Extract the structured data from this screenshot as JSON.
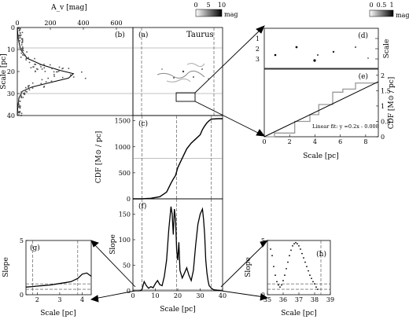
{
  "chart_data": [
    {
      "id": "b",
      "type": "line",
      "panel_label": "(b)",
      "xlabel": "A_v [mag]",
      "ylabel": "Scale [pc]",
      "xlim": [
        0,
        700
      ],
      "ylim": [
        0,
        40
      ],
      "yaxis_inverted": true,
      "xticks": [
        "0",
        "200",
        "400",
        "600"
      ],
      "yticks": [
        "0",
        "10",
        "20",
        "30",
        "40"
      ],
      "x": [
        0,
        5,
        20,
        60,
        150,
        260,
        340,
        310,
        200,
        90,
        30,
        10,
        3,
        0
      ],
      "y": [
        0,
        5,
        10,
        14,
        17,
        19.5,
        21,
        23,
        25,
        27,
        29,
        32,
        36,
        40
      ],
      "hlines": [
        9,
        30
      ]
    },
    {
      "id": "a",
      "type": "heatmap",
      "panel_label": "(a)",
      "annotation": "Taurus",
      "colorbar_ticks": [
        "0",
        "5",
        "10"
      ],
      "colorbar_label": "mag"
    },
    {
      "id": "c",
      "type": "line",
      "panel_label": "(c)",
      "ylabel": "CDF [M⊙ / pc]",
      "yticks": [
        "0",
        "500",
        "1000",
        "1500"
      ],
      "ylim": [
        0,
        1600
      ],
      "xlim": [
        0,
        40
      ],
      "x": [
        0,
        4,
        8,
        12,
        15,
        17,
        18,
        19,
        20,
        22,
        24,
        26,
        28,
        30,
        31,
        32,
        33,
        34,
        35,
        38,
        40
      ],
      "y": [
        0,
        0,
        10,
        40,
        130,
        300,
        380,
        450,
        600,
        780,
        960,
        1070,
        1150,
        1230,
        1330,
        1400,
        1460,
        1500,
        1530,
        1540,
        1540
      ],
      "hline": 780,
      "vlines": [
        4,
        19.5,
        35
      ]
    },
    {
      "id": "f",
      "type": "line",
      "panel_label": "(f)",
      "xlabel": "Scale [pc]",
      "ylabel": "Slope",
      "xlim": [
        0,
        40
      ],
      "ylim": [
        0,
        180
      ],
      "xticks": [
        "0",
        "10",
        "20",
        "30",
        "40"
      ],
      "yticks": [
        "0",
        "50",
        "100",
        "150"
      ],
      "x": [
        0,
        3,
        4,
        5,
        6,
        7,
        8,
        9,
        10,
        11,
        12,
        13,
        14,
        15,
        16,
        17,
        17.5,
        18,
        18.5,
        19,
        19.5,
        20,
        20.5,
        21,
        22,
        23,
        24,
        25,
        26,
        27,
        28,
        29,
        30,
        31,
        31.5,
        32,
        32.5,
        33,
        33.5,
        34,
        35,
        36,
        38,
        40
      ],
      "y": [
        0,
        0,
        2,
        18,
        10,
        5,
        8,
        6,
        14,
        20,
        12,
        10,
        28,
        60,
        120,
        165,
        150,
        110,
        160,
        140,
        80,
        60,
        95,
        40,
        25,
        35,
        45,
        30,
        20,
        40,
        90,
        130,
        150,
        160,
        140,
        110,
        60,
        35,
        20,
        10,
        5,
        2,
        1,
        0
      ],
      "vlines": [
        4,
        19.5,
        35
      ]
    },
    {
      "id": "d",
      "type": "heatmap",
      "panel_label": "(d)",
      "ylabel": "Scale",
      "yticks": [
        "1",
        "2",
        "3"
      ],
      "colorbar_ticks": [
        "0",
        "0.5",
        "1"
      ],
      "colorbar_label": "mag"
    },
    {
      "id": "e",
      "type": "line",
      "panel_label": "(e)",
      "xlabel": "Scale [pc]",
      "ylabel": "CDF [M⊙ / pc]",
      "xlim": [
        0,
        9
      ],
      "ylim": [
        0,
        2.2
      ],
      "xticks": [
        "0",
        "2",
        "4",
        "6",
        "8"
      ],
      "yticks": [
        "0",
        "0.5",
        "1",
        "1.5",
        "2"
      ],
      "annotation": "Linear fit: y =0.2x - 0.008",
      "fit": {
        "slope": 0.2,
        "intercept": -0.008
      },
      "x": [
        0,
        0.8,
        0.8,
        2.4,
        2.4,
        3.6,
        3.6,
        4.3,
        4.3,
        5.4,
        5.4,
        6.2,
        6.2,
        7.2,
        7.2,
        9
      ],
      "y": [
        0,
        0,
        0.12,
        0.12,
        0.5,
        0.5,
        0.72,
        0.72,
        1.05,
        1.05,
        1.45,
        1.45,
        1.55,
        1.55,
        1.75,
        1.75
      ]
    },
    {
      "id": "g",
      "type": "line",
      "panel_label": "(g)",
      "xlabel": "Scale [pc]",
      "ylabel": "Slope",
      "xlim": [
        1.5,
        4.4
      ],
      "ylim": [
        0,
        5
      ],
      "xticks": [
        "2",
        "3",
        "4"
      ],
      "yticks": [
        "0",
        "5"
      ],
      "x": [
        1.5,
        1.8,
        2.0,
        2.3,
        2.6,
        2.9,
        3.2,
        3.5,
        3.8,
        4.0,
        4.2,
        4.4
      ],
      "y": [
        0.7,
        0.75,
        0.8,
        0.85,
        0.9,
        1.0,
        1.1,
        1.2,
        1.5,
        1.9,
        2.0,
        1.7
      ],
      "hlines": [
        0.5,
        1.0
      ],
      "vlines": [
        1.8,
        3.8
      ]
    },
    {
      "id": "h",
      "type": "scatter",
      "panel_label": "(h)",
      "xlabel": "Scale [pc]",
      "ylabel": "Slope",
      "xlim": [
        35,
        39
      ],
      "ylim": [
        0,
        5
      ],
      "xticks": [
        "35",
        "36",
        "37",
        "38",
        "39"
      ],
      "yticks": [
        "0",
        "5"
      ],
      "x": [
        35.2,
        35.3,
        35.4,
        35.5,
        35.6,
        35.7,
        35.8,
        35.9,
        36.0,
        36.1,
        36.2,
        36.3,
        36.4,
        36.5,
        36.6,
        36.7,
        36.8,
        36.9,
        37.0,
        37.1,
        37.2,
        37.3,
        37.4,
        37.5,
        37.6,
        37.7,
        37.8,
        37.9,
        38.0,
        38.1,
        38.2
      ],
      "y": [
        4.2,
        3.6,
        2.6,
        1.8,
        1.2,
        0.9,
        0.7,
        0.9,
        1.3,
        1.8,
        2.4,
        3.0,
        3.6,
        4.1,
        4.5,
        4.7,
        4.8,
        4.7,
        4.5,
        4.2,
        3.8,
        3.4,
        3.0,
        2.6,
        2.2,
        1.8,
        1.5,
        1.2,
        1.0,
        0.7,
        0.5
      ],
      "hlines": [
        0.5,
        1.0
      ],
      "vlines": [
        38.4
      ]
    }
  ]
}
